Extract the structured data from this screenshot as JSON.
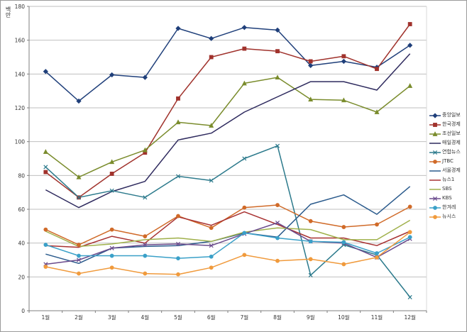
{
  "chart_data": {
    "type": "line",
    "title": "",
    "xlabel": "",
    "ylabel": "백만",
    "ylim": [
      0,
      180
    ],
    "yticks": [
      0,
      20,
      40,
      60,
      80,
      100,
      120,
      140,
      160,
      180
    ],
    "grid": true,
    "legend": "right",
    "categories": [
      "1월",
      "2월",
      "3월",
      "4월",
      "5월",
      "6월",
      "7월",
      "8월",
      "9월",
      "10월",
      "11월",
      "12월"
    ],
    "series": [
      {
        "name": "중앙일보",
        "color": "#1f3f7a",
        "marker": "diamond",
        "values": [
          141.5,
          124,
          139.5,
          138,
          167,
          161,
          167.5,
          166,
          145,
          147.5,
          144,
          157
        ]
      },
      {
        "name": "한국경제",
        "color": "#a0322c",
        "marker": "square",
        "values": [
          82,
          67,
          81,
          93.5,
          125.5,
          150,
          155,
          153.5,
          147.5,
          150.5,
          143,
          169.5
        ]
      },
      {
        "name": "조선일보",
        "color": "#7a8c2c",
        "marker": "triangle",
        "values": [
          94,
          79,
          88,
          95,
          111.5,
          109.5,
          134.5,
          138,
          125,
          124.5,
          117.5,
          133
        ]
      },
      {
        "name": "매일경제",
        "color": "#2e2a5e",
        "marker": "none",
        "values": [
          71.5,
          61,
          70.5,
          76.5,
          101,
          105,
          117.5,
          126.5,
          135.5,
          135.5,
          130.5,
          152
        ]
      },
      {
        "name": "연합뉴스",
        "color": "#2c7a8c",
        "marker": "x",
        "values": [
          85,
          67,
          71,
          67,
          79.5,
          77,
          90,
          97.5,
          21,
          39,
          33,
          8
        ]
      },
      {
        "name": "JTBC",
        "color": "#d06a28",
        "marker": "circle",
        "values": [
          48,
          39,
          48,
          44,
          56,
          49,
          61,
          62.5,
          53,
          49.5,
          51,
          61.5
        ]
      },
      {
        "name": "서울경제",
        "color": "#2a5a8c",
        "marker": "none",
        "values": [
          33.5,
          28,
          37,
          38,
          38.5,
          41,
          46,
          43.5,
          63,
          68.5,
          57,
          73.5
        ]
      },
      {
        "name": "뉴스1",
        "color": "#a83232",
        "marker": "none",
        "values": [
          38.5,
          37.5,
          44,
          40,
          55.5,
          50.5,
          58.5,
          51,
          43,
          43,
          38.5,
          47
        ]
      },
      {
        "name": "SBS",
        "color": "#9fb04a",
        "marker": "none",
        "values": [
          47,
          38,
          39.5,
          42,
          43,
          41,
          46.5,
          49,
          48,
          42,
          42,
          53.5
        ]
      },
      {
        "name": "KBS",
        "color": "#6a4a8c",
        "marker": "x",
        "values": [
          27.5,
          30,
          37,
          39,
          39.5,
          38.5,
          45.5,
          52,
          41,
          40,
          31.5,
          42.5
        ]
      },
      {
        "name": "한겨레",
        "color": "#3aa0c8",
        "marker": "circle",
        "values": [
          39,
          32.5,
          32.5,
          32.5,
          31,
          32,
          46,
          43,
          41,
          40.5,
          34,
          43.5
        ]
      },
      {
        "name": "뉴시스",
        "color": "#f09a3c",
        "marker": "circle",
        "values": [
          26,
          22,
          25.5,
          22,
          21.5,
          25.5,
          33,
          29.5,
          30.5,
          27.5,
          31.5,
          46.5
        ]
      }
    ]
  }
}
